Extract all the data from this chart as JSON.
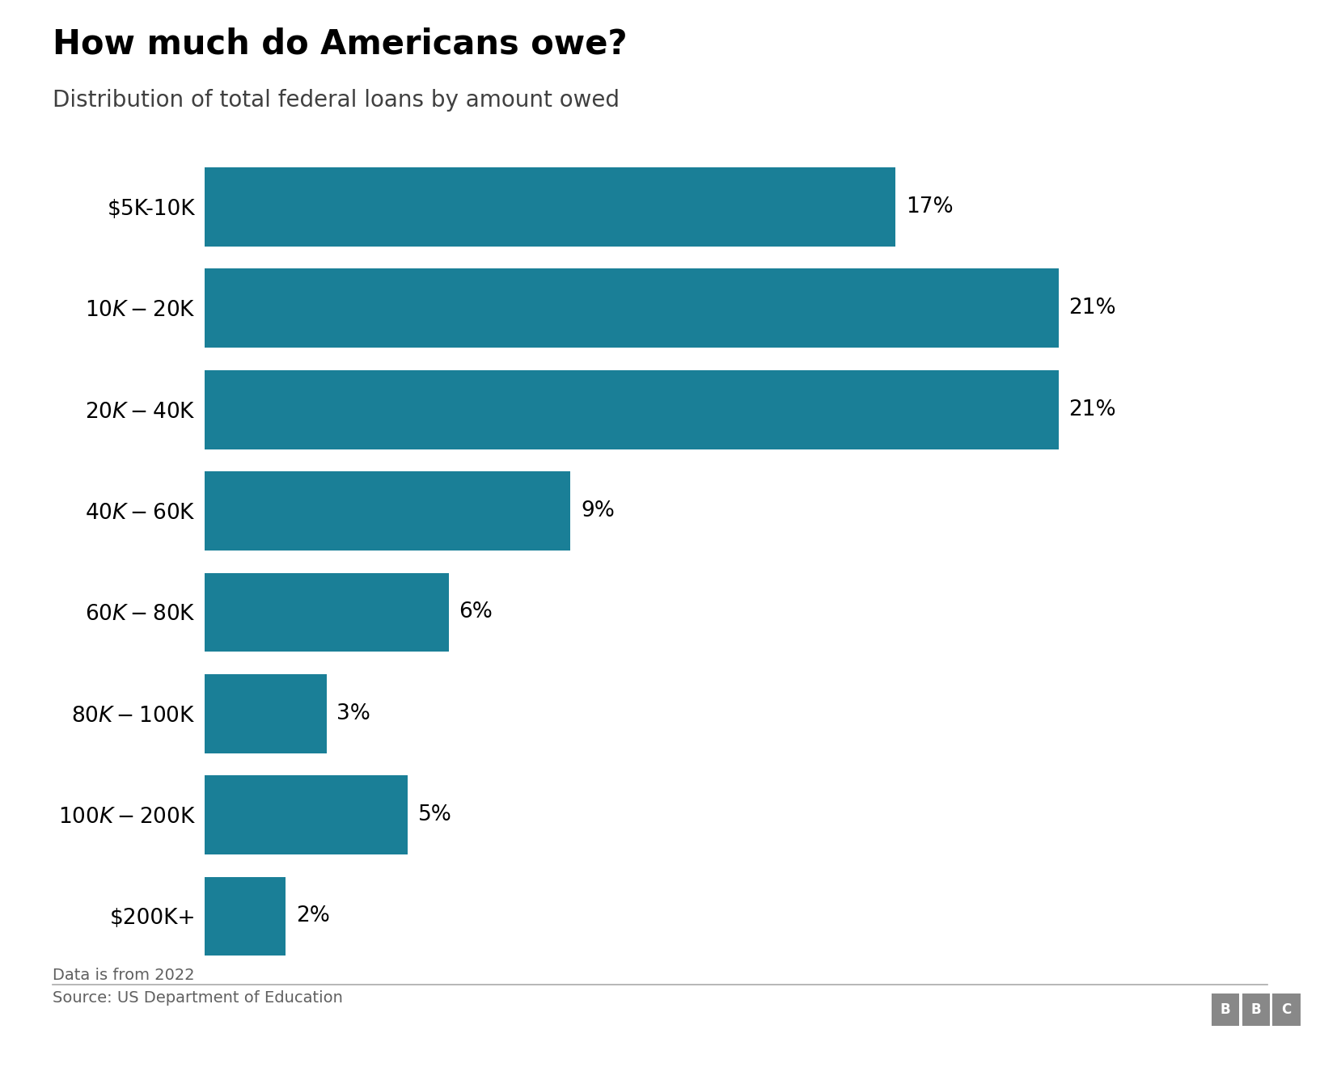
{
  "title": "How much do Americans owe?",
  "subtitle": "Distribution of total federal loans by amount owed",
  "categories": [
    "$5K-10K",
    "$10K-$20K",
    "$20K-$40K",
    "$40K-$60K",
    "$60K-$80K",
    "$80K-$100K",
    "$100K-$200K",
    "$200K+"
  ],
  "values": [
    17,
    21,
    21,
    9,
    6,
    3,
    5,
    2
  ],
  "bar_color": "#1a7f97",
  "label_color": "#000000",
  "title_fontsize": 30,
  "subtitle_fontsize": 20,
  "tick_fontsize": 19,
  "label_fontsize": 19,
  "footnote": "Data is from 2022",
  "source": "Source: US Department of Education",
  "bbc_label": "BBC",
  "background_color": "#ffffff",
  "footnote_color": "#606060",
  "source_color": "#606060",
  "line_color": "#aaaaaa"
}
